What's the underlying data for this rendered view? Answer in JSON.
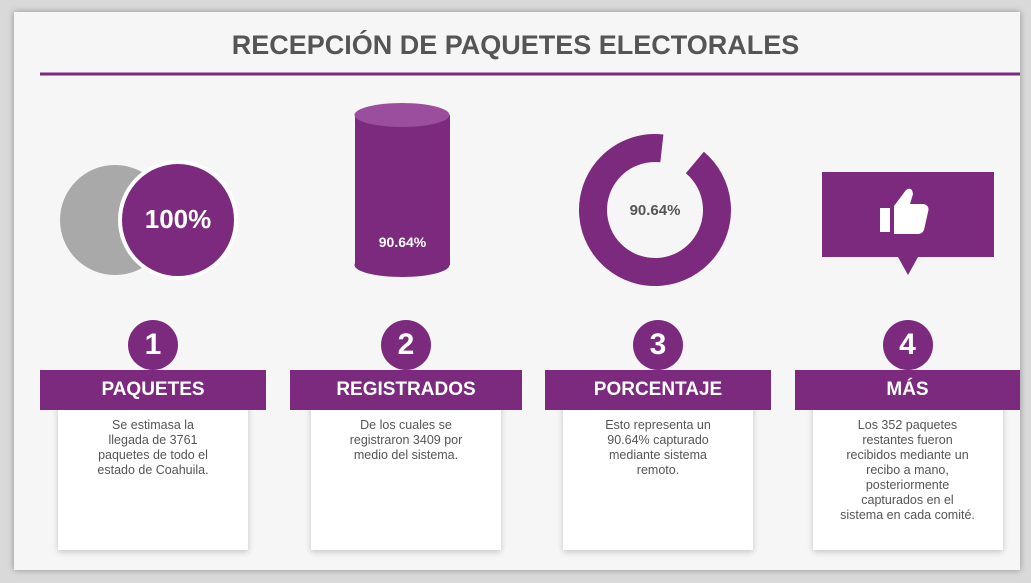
{
  "title": "RECEPCIÓN DE PAQUETES ELECTORALES",
  "cards": [
    {
      "icon_label": "100%",
      "number": "1",
      "heading": "PAQUETES",
      "lines": [
        "Se estimasa la",
        "llegada de 3761",
        "paquetes de todo el",
        "estado de Coahuila."
      ]
    },
    {
      "icon_label": "90.64%",
      "number": "2",
      "heading": "REGISTRADOS",
      "lines": [
        "De los cuales se",
        "registraron 3409 por",
        "medio del sistema."
      ]
    },
    {
      "icon_label": "90.64%",
      "number": "3",
      "heading": "PORCENTAJE",
      "lines": [
        "Esto representa un",
        "90.64% capturado",
        "mediante sistema",
        "remoto."
      ]
    },
    {
      "number": "4",
      "heading": "MÁS",
      "lines": [
        "Los 352 paquetes",
        "restantes fueron",
        "recibidos mediante un",
        "recibo a mano,",
        "posteriormente",
        "capturados en el",
        "sistema en cada comité."
      ]
    }
  ]
}
